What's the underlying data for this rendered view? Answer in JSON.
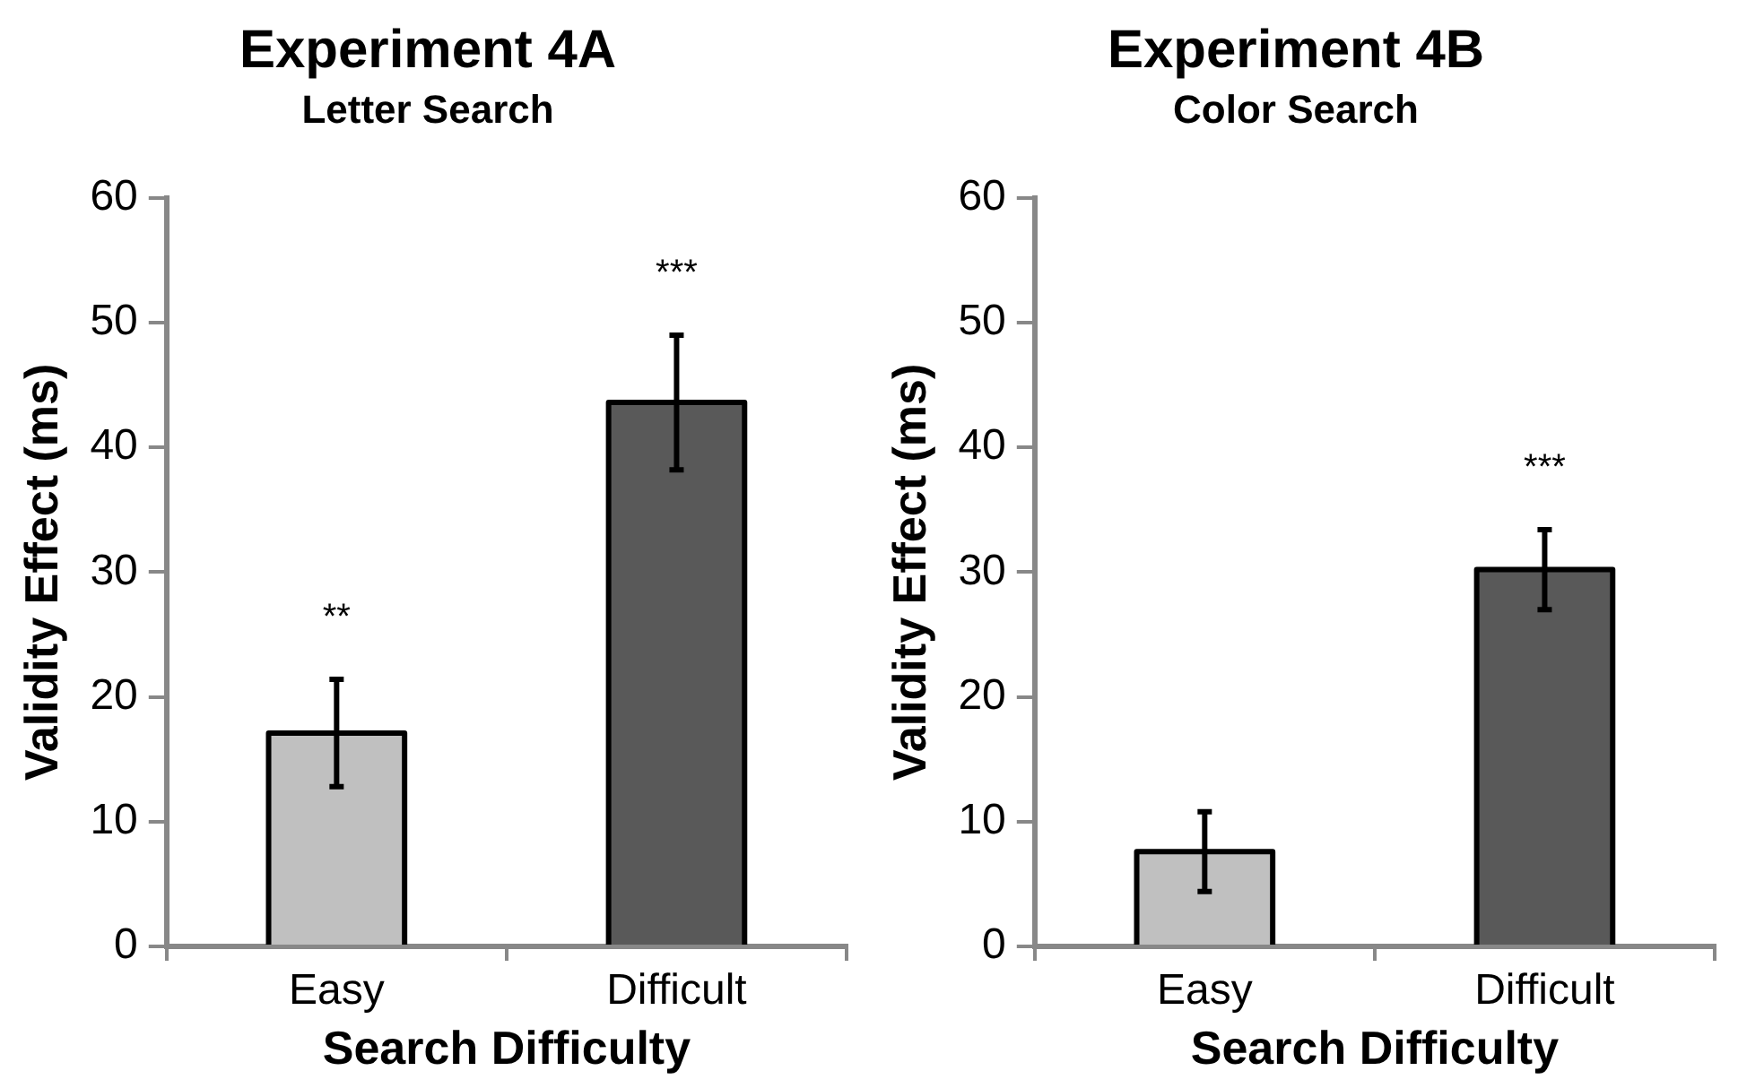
{
  "chart_data": [
    {
      "type": "bar",
      "title": "Experiment 4A",
      "subtitle": "Letter Search",
      "xlabel": "Search Difficulty",
      "ylabel": "Validity Effect (ms)",
      "categories": [
        "Easy",
        "Difficult"
      ],
      "values": [
        17.1,
        43.6
      ],
      "errors": [
        4.3,
        5.4
      ],
      "colors": [
        "#c0c0c0",
        "#595959"
      ],
      "ylim": [
        0,
        60
      ],
      "yticks": [
        0,
        10,
        20,
        30,
        40,
        50,
        60
      ],
      "grid": false,
      "legend": false,
      "annotations": [
        "**",
        "***"
      ]
    },
    {
      "type": "bar",
      "title": "Experiment 4B",
      "subtitle": "Color Search",
      "xlabel": "Search Difficulty",
      "ylabel": "Validity Effect (ms)",
      "categories": [
        "Easy",
        "Difficult"
      ],
      "values": [
        7.6,
        30.2
      ],
      "errors": [
        3.2,
        3.2
      ],
      "colors": [
        "#c0c0c0",
        "#595959"
      ],
      "ylim": [
        0,
        60
      ],
      "yticks": [
        0,
        10,
        20,
        30,
        40,
        50,
        60
      ],
      "grid": false,
      "legend": false,
      "annotations": [
        "***"
      ]
    }
  ]
}
